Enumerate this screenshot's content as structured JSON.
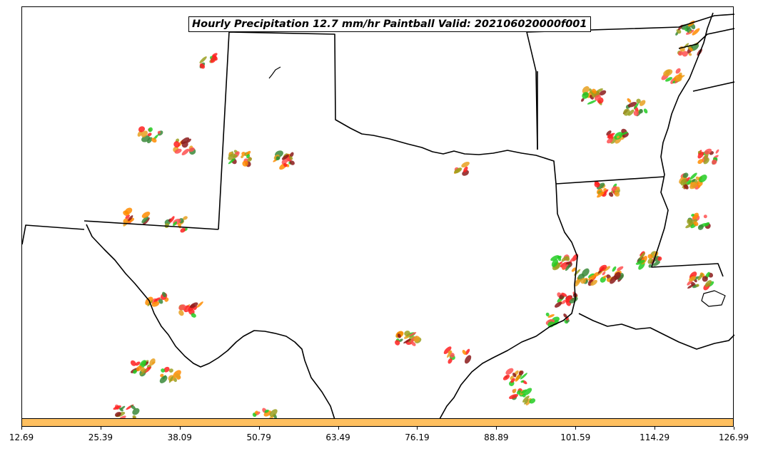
{
  "title": "Hourly Precipitation 12.7 mm/hr Paintball Valid: 202106020000f001",
  "colorbar": {
    "color": "#ffc060",
    "ticks": [
      "12.69",
      "25.39",
      "38.09",
      "50.79",
      "63.49",
      "76.19",
      "88.89",
      "101.59",
      "114.29",
      "126.99"
    ]
  },
  "member_colors": [
    "#ff8c00",
    "#ff2020",
    "#22cc22",
    "#8b1a1a",
    "#9aa020",
    "#ff5050",
    "#3a8a3a",
    "#e8a020"
  ]
}
